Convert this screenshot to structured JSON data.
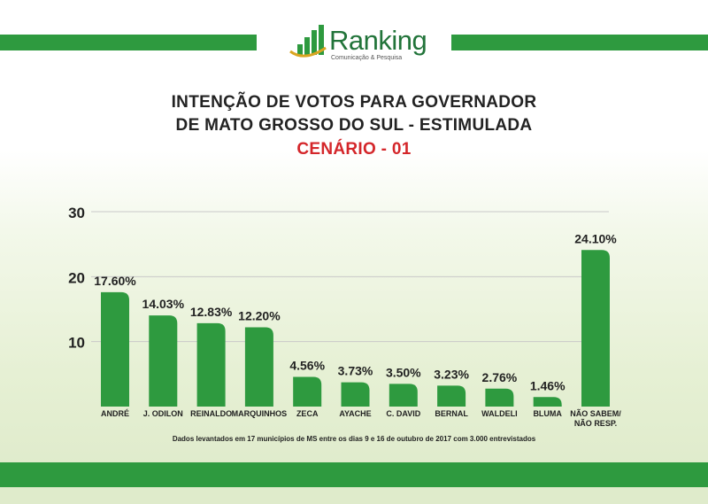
{
  "header": {
    "logo_name": "Ranking",
    "logo_tagline": "Comunicação & Pesquisa"
  },
  "titles": {
    "line1": "INTENÇÃO DE VOTOS PARA GOVERNADOR",
    "line2": "DE MATO GROSSO DO SUL - ESTIMULADA",
    "line3": "CENÁRIO - 01"
  },
  "colors": {
    "bar": "#2e9a3f",
    "brand": "#22743a",
    "accent": "#d4262a"
  },
  "chart_data": {
    "type": "bar",
    "title": "INTENÇÃO DE VOTOS PARA GOVERNADOR DE MATO GROSSO DO SUL - ESTIMULADA",
    "ylim": [
      0,
      30
    ],
    "yticks": [
      10,
      20,
      30
    ],
    "grid": true,
    "categories": [
      "ANDRÉ",
      "J. ODILON",
      "REINALDO",
      "MARQUINHOS",
      "ZECA",
      "AYACHE",
      "C. DAVID",
      "BERNAL",
      "WALDELI",
      "BLUMA",
      "NÃO SABEM/ NÃO RESP."
    ],
    "values": [
      17.6,
      14.03,
      12.83,
      12.2,
      4.56,
      3.73,
      3.5,
      3.23,
      2.76,
      1.46,
      24.1
    ],
    "labels": [
      "17.60%",
      "14.03%",
      "12.83%",
      "12.20%",
      "4.56%",
      "3.73%",
      "3.50%",
      "3.23%",
      "2.76%",
      "1.46%",
      "24.10%"
    ]
  },
  "footnote": "Dados levantados em 17 municípios de MS entre os dias 9 e 16 de outubro de 2017 com 3.000 entrevistados"
}
